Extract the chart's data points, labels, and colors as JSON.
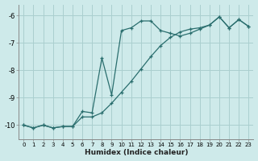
{
  "xlabel": "Humidex (Indice chaleur)",
  "bg_color": "#ceeaea",
  "grid_color": "#aacfcf",
  "line_color": "#2a6e6e",
  "xlim": [
    -0.5,
    23.5
  ],
  "ylim": [
    -10.5,
    -5.6
  ],
  "yticks": [
    -10,
    -9,
    -8,
    -7,
    -6
  ],
  "xticks": [
    0,
    1,
    2,
    3,
    4,
    5,
    6,
    7,
    8,
    9,
    10,
    11,
    12,
    13,
    14,
    15,
    16,
    17,
    18,
    19,
    20,
    21,
    22,
    23
  ],
  "curve1_x": [
    0,
    1,
    2,
    3,
    4,
    5,
    6,
    7,
    8,
    9,
    10,
    11,
    12,
    13,
    14,
    15,
    16,
    17,
    18,
    19,
    20,
    21,
    22,
    23
  ],
  "curve1_y": [
    -10.0,
    -10.1,
    -10.0,
    -10.1,
    -10.05,
    -10.05,
    -9.5,
    -9.55,
    -7.55,
    -8.9,
    -6.55,
    -6.45,
    -6.2,
    -6.2,
    -6.55,
    -6.65,
    -6.75,
    -6.65,
    -6.5,
    -6.35,
    -6.05,
    -6.45,
    -6.15,
    -6.4
  ],
  "curve2_x": [
    0,
    1,
    2,
    3,
    4,
    5,
    6,
    7,
    8,
    9,
    10,
    11,
    12,
    13,
    14,
    15,
    16,
    17,
    18,
    19,
    20,
    21,
    22,
    23
  ],
  "curve2_y": [
    -10.0,
    -10.1,
    -10.0,
    -10.1,
    -10.05,
    -10.05,
    -9.7,
    -9.7,
    -9.55,
    -9.2,
    -8.8,
    -8.4,
    -7.95,
    -7.5,
    -7.1,
    -6.8,
    -6.6,
    -6.5,
    -6.45,
    -6.35,
    -6.05,
    -6.45,
    -6.15,
    -6.4
  ]
}
